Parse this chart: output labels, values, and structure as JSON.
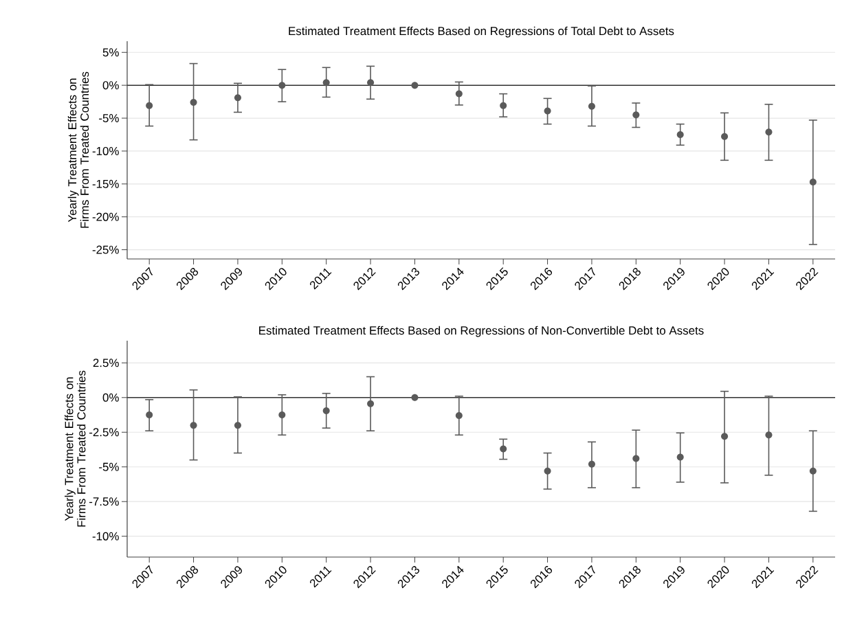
{
  "chart_data": [
    {
      "type": "scatter",
      "title": "Estimated Treatment Effects Based on Regressions of Total Debt to Assets",
      "ylabel": "Yearly Treatment Effects on Firms From Treated Countries",
      "categories": [
        "2007",
        "2008",
        "2009",
        "2010",
        "2011",
        "2012",
        "2013",
        "2014",
        "2015",
        "2016",
        "2017",
        "2018",
        "2019",
        "2020",
        "2021",
        "2022"
      ],
      "values": [
        -3.1,
        -2.6,
        -1.9,
        0,
        0.4,
        0.4,
        0,
        -1.3,
        -3.1,
        -3.9,
        -3.2,
        -4.5,
        -7.5,
        -7.8,
        -7.1,
        -14.7
      ],
      "errors": [
        [
          -6.2,
          0.1
        ],
        [
          -8.3,
          3.3
        ],
        [
          -4.1,
          0.3
        ],
        [
          -2.5,
          2.4
        ],
        [
          -1.8,
          2.7
        ],
        [
          -2.1,
          2.9
        ],
        null,
        [
          -3.0,
          0.5
        ],
        [
          -4.8,
          -1.3
        ],
        [
          -5.9,
          -2.0
        ],
        [
          -6.2,
          -0.1
        ],
        [
          -6.4,
          -2.7
        ],
        [
          -9.1,
          -5.9
        ],
        [
          -11.4,
          -4.2
        ],
        [
          -11.4,
          -2.9
        ],
        [
          -24.2,
          -5.3
        ]
      ],
      "color": "#5a5a5a",
      "marker": "circle",
      "grid": "y",
      "ylim": [
        -26.4,
        6.7
      ],
      "yticks": [
        {
          "value": 5,
          "label": "5%"
        },
        {
          "value": 0,
          "label": "0%"
        },
        {
          "value": -5,
          "label": "-5%"
        },
        {
          "value": -10,
          "label": "-10%"
        },
        {
          "value": -15,
          "label": "-15%"
        },
        {
          "value": -20,
          "label": "-20%"
        },
        {
          "value": -25,
          "label": "-25%"
        }
      ],
      "ref_lines": [
        {
          "axis": "y",
          "value": 0,
          "color": "#333333"
        }
      ]
    },
    {
      "type": "scatter",
      "title": "Estimated Treatment Effects Based on Regressions of Non-Convertible Debt to Assets",
      "ylabel": "Yearly Treatment Effects on Firms From Treated Countries",
      "categories": [
        "2007",
        "2008",
        "2009",
        "2010",
        "2011",
        "2012",
        "2013",
        "2014",
        "2015",
        "2016",
        "2017",
        "2018",
        "2019",
        "2020",
        "2021",
        "2022"
      ],
      "values": [
        -1.25,
        -2.0,
        -2.0,
        -1.25,
        -0.95,
        -0.45,
        0,
        -1.3,
        -3.7,
        -5.3,
        -4.8,
        -4.4,
        -4.3,
        -2.8,
        -2.7,
        -5.3
      ],
      "errors": [
        [
          -2.4,
          -0.15
        ],
        [
          -4.5,
          0.55
        ],
        [
          -4.0,
          0.05
        ],
        [
          -2.7,
          0.2
        ],
        [
          -2.2,
          0.3
        ],
        [
          -2.4,
          1.5
        ],
        null,
        [
          -2.7,
          0.1
        ],
        [
          -4.45,
          -3.0
        ],
        [
          -6.6,
          -4.0
        ],
        [
          -6.5,
          -3.2
        ],
        [
          -6.5,
          -2.35
        ],
        [
          -6.1,
          -2.55
        ],
        [
          -6.15,
          0.45
        ],
        [
          -5.6,
          0.1
        ],
        [
          -8.2,
          -2.4
        ]
      ],
      "color": "#5a5a5a",
      "marker": "circle",
      "grid": "y",
      "ylim": [
        -11.5,
        4.1
      ],
      "yticks": [
        {
          "value": 2.5,
          "label": "2.5%"
        },
        {
          "value": 0,
          "label": "0%"
        },
        {
          "value": -2.5,
          "label": "-2.5%"
        },
        {
          "value": -5,
          "label": "-5%"
        },
        {
          "value": -7.5,
          "label": "-7.5%"
        },
        {
          "value": -10,
          "label": "-10%"
        }
      ],
      "ref_lines": [
        {
          "axis": "y",
          "value": 0,
          "color": "#333333"
        }
      ]
    }
  ]
}
